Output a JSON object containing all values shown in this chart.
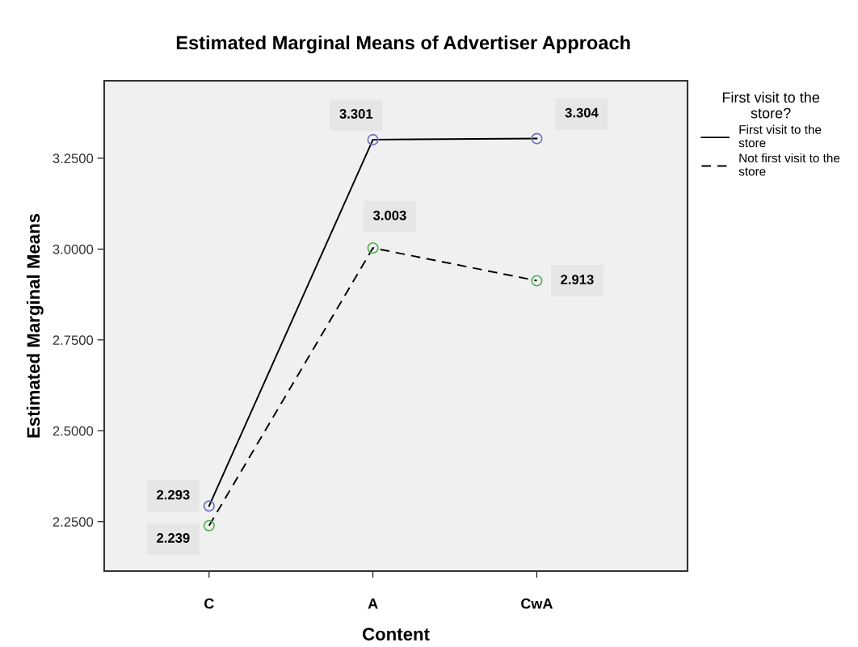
{
  "chart_data": {
    "type": "line",
    "title": "Estimated Marginal Means of Advertiser Approach",
    "xlabel": "Content",
    "ylabel": "Estimated Marginal Means",
    "legend_title": "First visit to the\nstore?",
    "categories": [
      "C",
      "A",
      "CwA"
    ],
    "series": [
      {
        "name": "First visit to the\nstore",
        "color": "#000000",
        "colors": [
          "#7070c0",
          "#7070c0",
          "#7070c0"
        ],
        "line_style": "solid",
        "values": [
          2.293,
          3.301,
          3.304
        ]
      },
      {
        "name": "Not first visit to the\nstore",
        "color": "#000000",
        "colors": [
          "#50b050",
          "#50b050",
          "#50b050"
        ],
        "line_style": "dashed",
        "values": [
          2.239,
          3.003,
          2.913
        ]
      }
    ],
    "ylim": [
      2.114,
      3.463
    ],
    "yticks": [
      {
        "value": 2.25,
        "label": "2.2500"
      },
      {
        "value": 2.5,
        "label": "2.5000"
      },
      {
        "value": 2.75,
        "label": "2.7500"
      },
      {
        "value": 3.0,
        "label": "3.0000"
      },
      {
        "value": 3.25,
        "label": "3.2500"
      }
    ],
    "marker": "circle",
    "data_labels": true,
    "legend": "top right",
    "grid": false
  }
}
